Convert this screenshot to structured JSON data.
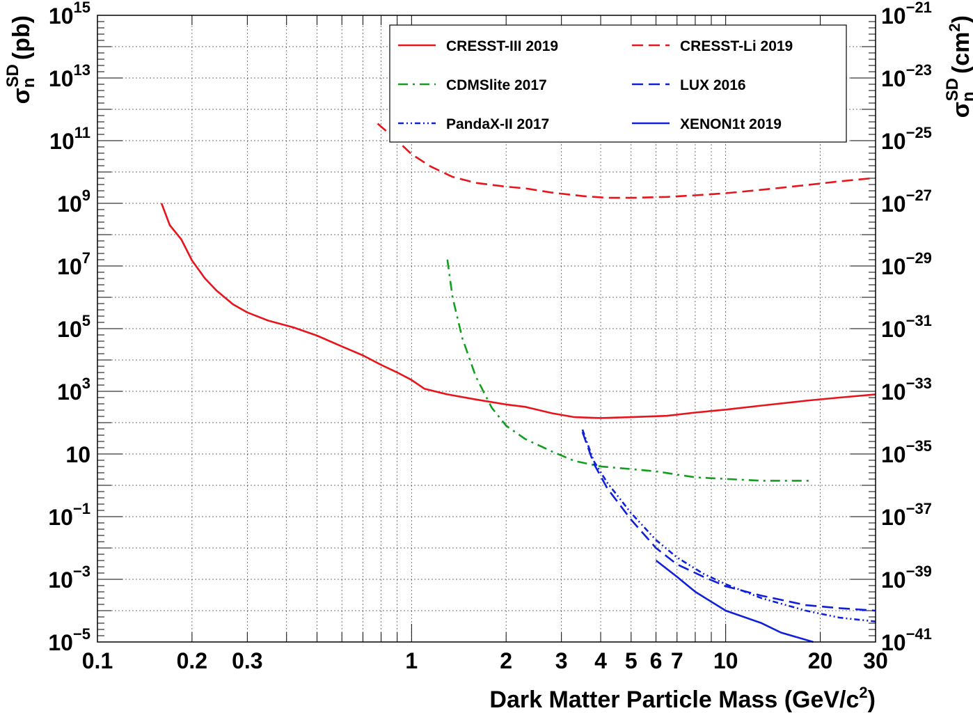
{
  "chart_data": {
    "type": "line",
    "xlabel": "Dark Matter Particle Mass (GeV/c",
    "xlabel_sup": "2",
    "xlabel_close": ")",
    "ylabel_left": {
      "sigma": "σ",
      "sub": "n",
      "sup": "SD",
      "unit": "(pb)"
    },
    "ylabel_right": {
      "sigma": "σ",
      "sub": "n",
      "sup": "SD",
      "unit_open": "(cm",
      "unit_sup": "2",
      "unit_close": ")"
    },
    "xscale": "log",
    "yscale": "log",
    "xlim": [
      0.1,
      30
    ],
    "ylim_left_pb": [
      1e-05,
      1000000000000000.0
    ],
    "ylim_right_cm2": [
      1e-41,
      1e-21
    ],
    "grid": true,
    "legend_position": "top-right",
    "x_ticks": [
      {
        "value": 0.1,
        "label": "0.1"
      },
      {
        "value": 0.2,
        "label": "0.2"
      },
      {
        "value": 0.3,
        "label": "0.3"
      },
      {
        "value": 1,
        "label": "1"
      },
      {
        "value": 2,
        "label": "2"
      },
      {
        "value": 3,
        "label": "3"
      },
      {
        "value": 4,
        "label": "4"
      },
      {
        "value": 5,
        "label": "5"
      },
      {
        "value": 6,
        "label": "6"
      },
      {
        "value": 7,
        "label": "7"
      },
      {
        "value": 10,
        "label": "10"
      },
      {
        "value": 20,
        "label": "20"
      },
      {
        "value": 30,
        "label": "30"
      }
    ],
    "y_ticks_left": [
      {
        "exp": 15,
        "base": "10",
        "sup": "15"
      },
      {
        "exp": 13,
        "base": "10",
        "sup": "13"
      },
      {
        "exp": 11,
        "base": "10",
        "sup": "11"
      },
      {
        "exp": 9,
        "base": "10",
        "sup": "9"
      },
      {
        "exp": 7,
        "base": "10",
        "sup": "7"
      },
      {
        "exp": 5,
        "base": "10",
        "sup": "5"
      },
      {
        "exp": 3,
        "base": "10",
        "sup": "3"
      },
      {
        "exp": 1,
        "base": "10",
        "sup": ""
      },
      {
        "exp": -1,
        "base": "10",
        "sup": "−1"
      },
      {
        "exp": -3,
        "base": "10",
        "sup": "−3"
      },
      {
        "exp": -5,
        "base": "10",
        "sup": "−5"
      }
    ],
    "y_ticks_right": [
      {
        "exp": -21,
        "base": "10",
        "sup": "−21"
      },
      {
        "exp": -23,
        "base": "10",
        "sup": "−23"
      },
      {
        "exp": -25,
        "base": "10",
        "sup": "−25"
      },
      {
        "exp": -27,
        "base": "10",
        "sup": "−27"
      },
      {
        "exp": -29,
        "base": "10",
        "sup": "−29"
      },
      {
        "exp": -31,
        "base": "10",
        "sup": "−31"
      },
      {
        "exp": -33,
        "base": "10",
        "sup": "−33"
      },
      {
        "exp": -35,
        "base": "10",
        "sup": "−35"
      },
      {
        "exp": -37,
        "base": "10",
        "sup": "−37"
      },
      {
        "exp": -39,
        "base": "10",
        "sup": "−39"
      },
      {
        "exp": -41,
        "base": "10",
        "sup": "−41"
      }
    ],
    "series": [
      {
        "name": "CRESST-III 2019",
        "color": "#e8141b",
        "style": "solid",
        "points": [
          [
            0.16,
            1000000000.0
          ],
          [
            0.17,
            200000000.0
          ],
          [
            0.185,
            70000000.0
          ],
          [
            0.2,
            15000000.0
          ],
          [
            0.22,
            4000000.0
          ],
          [
            0.24,
            1600000.0
          ],
          [
            0.27,
            600000.0
          ],
          [
            0.3,
            330000.0
          ],
          [
            0.35,
            180000.0
          ],
          [
            0.42,
            110000.0
          ],
          [
            0.5,
            60000.0
          ],
          [
            0.6,
            27000.0
          ],
          [
            0.7,
            14000.0
          ],
          [
            0.8,
            7000.0
          ],
          [
            0.9,
            4000.0
          ],
          [
            1.0,
            2300.0
          ],
          [
            1.1,
            1200.0
          ],
          [
            1.3,
            800
          ],
          [
            1.6,
            550
          ],
          [
            2.0,
            380
          ],
          [
            2.3,
            320
          ],
          [
            2.8,
            200
          ],
          [
            3.3,
            150
          ],
          [
            4.0,
            140
          ],
          [
            5.0,
            150
          ],
          [
            6.5,
            165
          ],
          [
            8.0,
            210
          ],
          [
            10.0,
            260
          ],
          [
            13.0,
            350
          ],
          [
            18.0,
            500
          ],
          [
            23.0,
            630
          ],
          [
            30.0,
            800
          ]
        ]
      },
      {
        "name": "CRESST-Li 2019",
        "color": "#e8141b",
        "style": "dashed",
        "points": [
          [
            0.78,
            350000000000.0
          ],
          [
            0.9,
            100000000000.0
          ],
          [
            1.0,
            37000000000.0
          ],
          [
            1.15,
            15000000000.0
          ],
          [
            1.35,
            7000000000.0
          ],
          [
            1.6,
            4500000000.0
          ],
          [
            2.0,
            3400000000.0
          ],
          [
            2.3,
            3000000000.0
          ],
          [
            2.8,
            2200000000.0
          ],
          [
            3.5,
            1700000000.0
          ],
          [
            4.2,
            1500000000.0
          ],
          [
            5.0,
            1500000000.0
          ],
          [
            6.5,
            1600000000.0
          ],
          [
            8.0,
            1800000000.0
          ],
          [
            10.0,
            2100000000.0
          ],
          [
            13.0,
            2700000000.0
          ],
          [
            18.0,
            3800000000.0
          ],
          [
            23.0,
            5000000000.0
          ],
          [
            30.0,
            6500000000.0
          ]
        ]
      },
      {
        "name": "CDMSlite 2017",
        "color": "#139e1f",
        "style": "dashdot",
        "points": [
          [
            1.3,
            16000000.0
          ],
          [
            1.35,
            1000000.0
          ],
          [
            1.45,
            50000.0
          ],
          [
            1.6,
            3000.0
          ],
          [
            1.8,
            300
          ],
          [
            2.0,
            80
          ],
          [
            2.3,
            30
          ],
          [
            2.8,
            12
          ],
          [
            3.3,
            6
          ],
          [
            4.0,
            4
          ],
          [
            5.0,
            3.3
          ],
          [
            6.0,
            2.8
          ],
          [
            7.0,
            2.2
          ],
          [
            8.0,
            1.8
          ],
          [
            10.0,
            1.6
          ],
          [
            13.0,
            1.4
          ],
          [
            19.0,
            1.4
          ]
        ]
      },
      {
        "name": "LUX 2016",
        "color": "#1020d8",
        "style": "dashed",
        "points": [
          [
            3.5,
            50
          ],
          [
            3.8,
            5
          ],
          [
            4.2,
            0.8
          ],
          [
            5.0,
            0.08
          ],
          [
            6.0,
            0.01
          ],
          [
            7.0,
            0.003
          ],
          [
            8.5,
            0.0012
          ],
          [
            10.0,
            0.0006
          ],
          [
            13.0,
            0.0003
          ],
          [
            18.0,
            0.00015
          ],
          [
            23.0,
            0.00012
          ],
          [
            30.0,
            0.0001
          ]
        ]
      },
      {
        "name": "PandaX-II 2017",
        "color": "#1020d8",
        "style": "dashdotdot",
        "points": [
          [
            3.5,
            60
          ],
          [
            3.8,
            6
          ],
          [
            4.2,
            1.2
          ],
          [
            5.0,
            0.13
          ],
          [
            6.0,
            0.018
          ],
          [
            7.0,
            0.005
          ],
          [
            8.5,
            0.0015
          ],
          [
            10.0,
            0.0007
          ],
          [
            13.0,
            0.00025
          ],
          [
            18.0,
            0.0001
          ],
          [
            23.0,
            6e-05
          ],
          [
            30.0,
            4.5e-05
          ]
        ]
      },
      {
        "name": "XENON1t 2019",
        "color": "#1020d8",
        "style": "solid",
        "points": [
          [
            6.0,
            0.004
          ],
          [
            7.0,
            0.0012
          ],
          [
            8.0,
            0.0004
          ],
          [
            10.0,
            0.0001
          ],
          [
            13.0,
            4e-05
          ],
          [
            15.0,
            2e-05
          ],
          [
            19.0,
            1e-05
          ]
        ]
      }
    ]
  }
}
